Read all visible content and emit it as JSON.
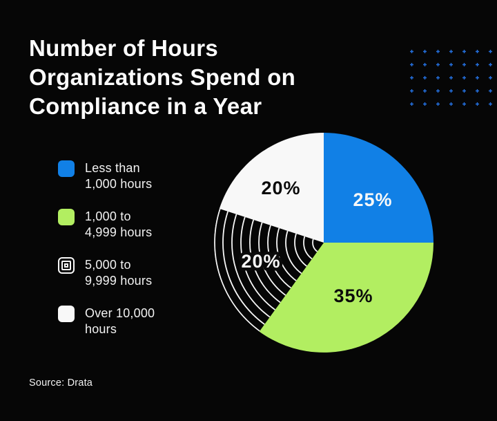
{
  "palette": {
    "background": "#060606",
    "ink": "#0b0b0b",
    "blue": "#1180e6",
    "green": "#b2ee61",
    "white": "#f8f8f8",
    "dot_blue": "#2472e4",
    "title_text": "#fcfcfc",
    "legend_text": "#f2f2f2"
  },
  "header": {
    "title": "Number of Hours\nOrganizations Spend on\nCompliance in a Year"
  },
  "legend": {
    "items": [
      {
        "label": "Less than\n1,000 hours",
        "swatch": "blue"
      },
      {
        "label": "1,000 to\n4,999 hours",
        "swatch": "green"
      },
      {
        "label": "5,000 to\n9,999 hours",
        "swatch": "concentric-squares-pattern"
      },
      {
        "label": "Over 10,000\nhours",
        "swatch": "white"
      }
    ]
  },
  "footer": {
    "source": "Source: Drata"
  },
  "chart_data": {
    "type": "pie",
    "title": "Number of Hours Organizations Spend on Compliance in a Year",
    "categories": [
      "Less than 1,000 hours",
      "1,000 to 4,999 hours",
      "5,000 to 9,999 hours",
      "Over 10,000 hours"
    ],
    "values": [
      25,
      35,
      20,
      20
    ],
    "labels": [
      "25%",
      "35%",
      "20%",
      "20%"
    ],
    "colors": [
      "#1180e6",
      "#b2ee61",
      "concentric-white-rings-on-black",
      "#f8f8f8"
    ],
    "start_angle_deg": 0,
    "direction": "clockwise",
    "legend_position": "left",
    "source": "Drata"
  }
}
